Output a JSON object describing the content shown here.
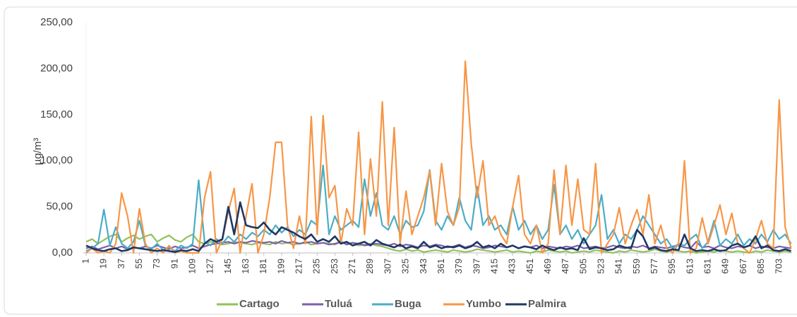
{
  "chart_data": {
    "type": "line",
    "y_label": "µg/m³",
    "x": [
      1,
      7,
      13,
      19,
      25,
      31,
      37,
      43,
      49,
      55,
      61,
      67,
      73,
      79,
      85,
      91,
      97,
      103,
      109,
      115,
      121,
      127,
      133,
      139,
      145,
      151,
      157,
      163,
      169,
      175,
      181,
      187,
      193,
      199,
      205,
      211,
      217,
      223,
      229,
      235,
      241,
      247,
      253,
      259,
      265,
      271,
      277,
      283,
      289,
      295,
      301,
      307,
      313,
      319,
      325,
      331,
      337,
      343,
      349,
      355,
      361,
      367,
      373,
      379,
      385,
      391,
      397,
      403,
      409,
      415,
      421,
      427,
      433,
      439,
      445,
      451,
      457,
      463,
      469,
      475,
      481,
      487,
      493,
      499,
      505,
      511,
      517,
      523,
      529,
      535,
      541,
      547,
      553,
      559,
      565,
      571,
      577,
      583,
      589,
      595,
      601,
      607,
      613,
      619,
      625,
      631,
      637,
      643,
      649,
      655,
      661,
      667,
      673,
      679,
      685,
      691,
      697,
      703,
      709,
      715
    ],
    "xlim": [
      1,
      716
    ],
    "xticks": [
      1,
      19,
      37,
      55,
      73,
      91,
      109,
      127,
      145,
      163,
      181,
      199,
      217,
      235,
      253,
      271,
      289,
      307,
      325,
      343,
      361,
      379,
      397,
      415,
      433,
      451,
      469,
      487,
      505,
      523,
      541,
      559,
      577,
      595,
      613,
      631,
      649,
      667,
      685,
      703
    ],
    "ylim": [
      0,
      250
    ],
    "yticks": [
      {
        "value": 0,
        "label": "0,00"
      },
      {
        "value": 50,
        "label": "50,00"
      },
      {
        "value": 100,
        "label": "100,00"
      },
      {
        "value": 150,
        "label": "150,00"
      },
      {
        "value": 200,
        "label": "200,00"
      },
      {
        "value": 250,
        "label": "250,00"
      }
    ],
    "legend": "bottom",
    "series": [
      {
        "name": "Cartago",
        "color": "#92c05a",
        "values": [
          12,
          15,
          10,
          14,
          18,
          20,
          12,
          16,
          19,
          15,
          18,
          20,
          12,
          16,
          19,
          14,
          12,
          17,
          20,
          12,
          10,
          12,
          11,
          9,
          10,
          12,
          11,
          10,
          9,
          11,
          10,
          9,
          12,
          10,
          11,
          9,
          10,
          12,
          9,
          10,
          11,
          10,
          9,
          12,
          10,
          11,
          8,
          9,
          10,
          8,
          7,
          5,
          3,
          2,
          4,
          2,
          3,
          1,
          2,
          3,
          2,
          1,
          3,
          2,
          1,
          2,
          4,
          3,
          2,
          1,
          2,
          3,
          1,
          2,
          1,
          0,
          2,
          1,
          3,
          2,
          1,
          2,
          0,
          1,
          2,
          1,
          3,
          2,
          1,
          0,
          2,
          1,
          3,
          2,
          1,
          2,
          4,
          2,
          1,
          3,
          2,
          1,
          2,
          0,
          1,
          2,
          1,
          3,
          2,
          1,
          2,
          1,
          0,
          2,
          1,
          3,
          2,
          1,
          2,
          1
        ]
      },
      {
        "name": "Tuluá",
        "color": "#7e5ea8",
        "values": [
          5,
          7,
          4,
          6,
          8,
          5,
          7,
          4,
          6,
          5,
          7,
          5,
          8,
          6,
          4,
          7,
          5,
          6,
          8,
          5,
          7,
          9,
          10,
          11,
          12,
          10,
          12,
          11,
          13,
          12,
          11,
          12,
          10,
          13,
          11,
          12,
          10,
          11,
          12,
          10,
          11,
          9,
          10,
          12,
          9,
          11,
          10,
          8,
          9,
          10,
          9,
          8,
          10,
          7,
          9,
          8,
          6,
          8,
          7,
          9,
          8,
          6,
          7,
          9,
          6,
          8,
          7,
          5,
          6,
          8,
          7,
          6,
          8,
          5,
          7,
          6,
          8,
          5,
          7,
          6,
          5,
          7,
          6,
          8,
          5,
          6,
          7,
          5,
          6,
          8,
          6,
          5,
          7,
          6,
          8,
          5,
          7,
          6,
          5,
          7,
          8,
          6,
          5,
          12,
          6,
          7,
          5,
          8,
          6,
          5,
          7,
          6,
          8,
          5,
          7,
          6,
          5,
          7,
          6,
          5
        ]
      },
      {
        "name": "Buga",
        "color": "#4bacc6",
        "values": [
          2,
          5,
          10,
          47,
          8,
          28,
          10,
          5,
          12,
          35,
          8,
          4,
          10,
          3,
          6,
          2,
          8,
          5,
          10,
          79,
          12,
          8,
          15,
          10,
          18,
          12,
          20,
          15,
          22,
          18,
          25,
          20,
          30,
          22,
          28,
          18,
          25,
          20,
          35,
          30,
          95,
          20,
          40,
          25,
          30,
          35,
          28,
          80,
          40,
          65,
          30,
          25,
          40,
          20,
          35,
          28,
          30,
          45,
          90,
          35,
          25,
          40,
          30,
          60,
          35,
          25,
          72,
          30,
          40,
          25,
          30,
          20,
          50,
          25,
          35,
          20,
          30,
          15,
          25,
          74,
          20,
          30,
          15,
          25,
          10,
          20,
          30,
          63,
          15,
          25,
          10,
          20,
          15,
          25,
          40,
          30,
          20,
          10,
          15,
          5,
          10,
          8,
          15,
          20,
          5,
          12,
          35,
          8,
          15,
          10,
          20,
          8,
          15,
          10,
          20,
          12,
          25,
          15,
          20,
          10
        ]
      },
      {
        "name": "Yumbo",
        "color": "#f79646",
        "values": [
          0,
          5,
          0,
          2,
          0,
          10,
          65,
          40,
          0,
          48,
          10,
          0,
          5,
          0,
          8,
          0,
          2,
          0,
          0,
          0,
          60,
          88,
          0,
          15,
          45,
          70,
          0,
          40,
          75,
          0,
          20,
          60,
          120,
          120,
          30,
          5,
          40,
          10,
          148,
          20,
          149,
          60,
          73,
          10,
          48,
          30,
          131,
          20,
          102,
          40,
          164,
          30,
          136,
          10,
          67,
          20,
          40,
          60,
          89,
          30,
          97,
          45,
          30,
          50,
          208,
          119,
          60,
          100,
          30,
          40,
          20,
          10,
          50,
          84,
          20,
          10,
          30,
          0,
          10,
          90,
          20,
          95,
          30,
          80,
          25,
          20,
          97,
          0,
          10,
          20,
          49,
          10,
          30,
          47,
          20,
          63,
          10,
          30,
          5,
          0,
          10,
          100,
          0,
          5,
          38,
          10,
          30,
          52,
          20,
          43,
          10,
          5,
          0,
          15,
          35,
          10,
          5,
          166,
          28,
          5
        ]
      },
      {
        "name": "Palmira",
        "color": "#1f3864",
        "values": [
          8,
          5,
          3,
          2,
          4,
          5,
          2,
          3,
          6,
          5,
          4,
          3,
          2,
          3,
          2,
          1,
          3,
          2,
          4,
          2,
          10,
          15,
          12,
          15,
          50,
          20,
          55,
          30,
          28,
          27,
          33,
          25,
          20,
          28,
          25,
          22,
          18,
          15,
          20,
          12,
          15,
          12,
          18,
          10,
          12,
          8,
          10,
          12,
          8,
          14,
          10,
          8,
          6,
          9,
          5,
          7,
          5,
          12,
          6,
          8,
          5,
          7,
          6,
          8,
          5,
          7,
          12,
          6,
          8,
          5,
          10,
          6,
          8,
          5,
          7,
          6,
          4,
          8,
          5,
          3,
          6,
          4,
          5,
          3,
          16,
          4,
          6,
          5,
          3,
          4,
          8,
          6,
          5,
          25,
          18,
          4,
          6,
          3,
          2,
          4,
          3,
          20,
          5,
          2,
          3,
          2,
          4,
          2,
          3,
          8,
          10,
          6,
          8,
          18,
          5,
          8,
          3,
          2,
          4,
          2
        ]
      }
    ]
  }
}
